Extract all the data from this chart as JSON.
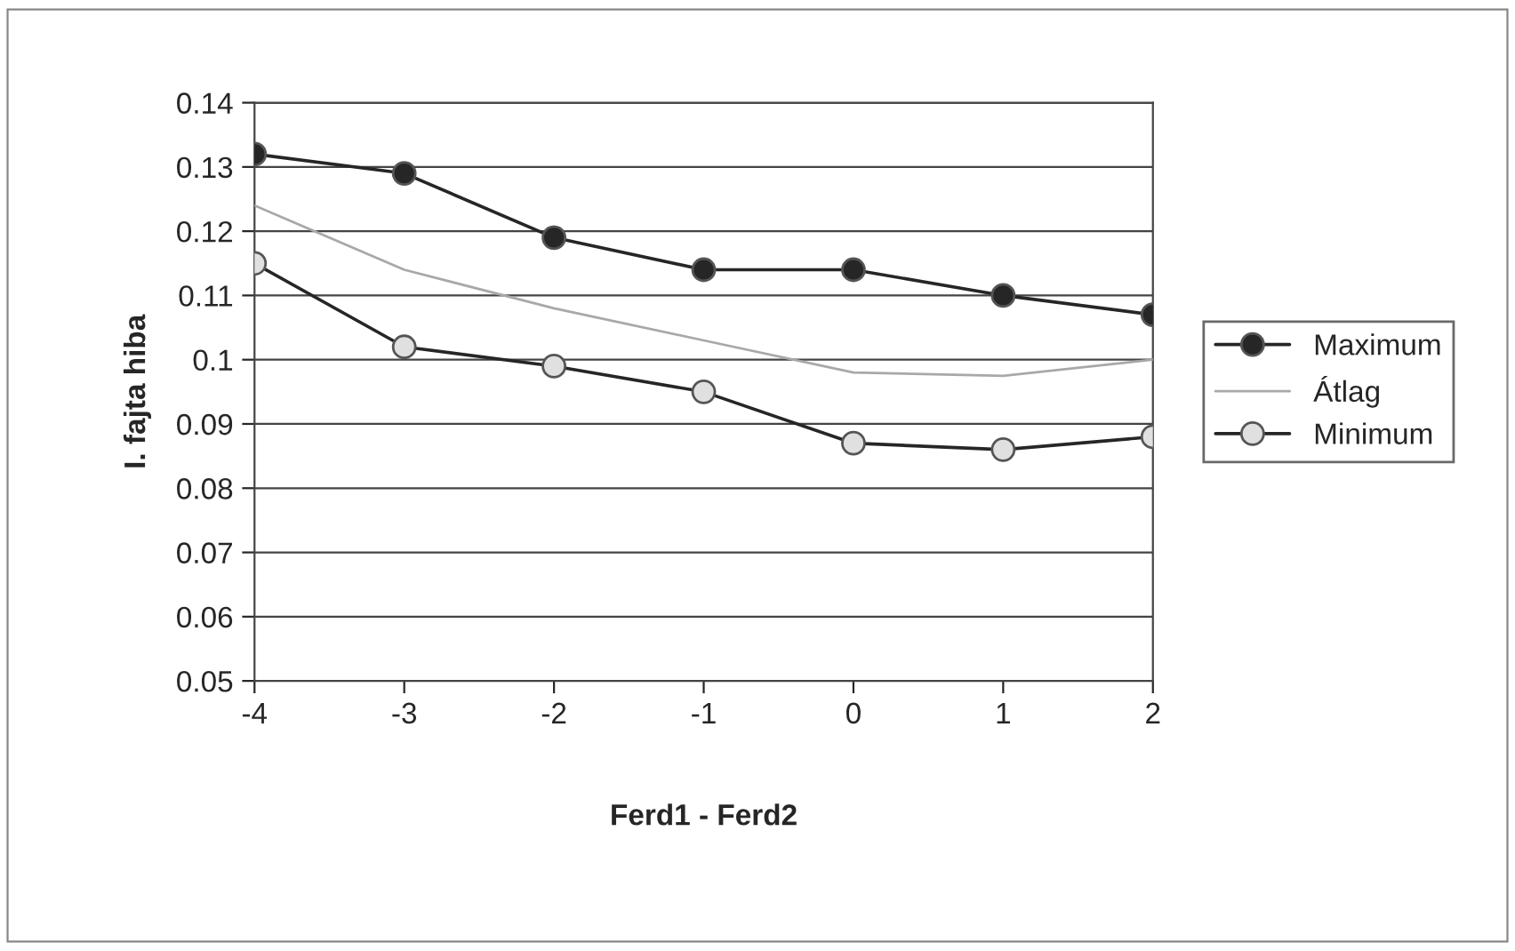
{
  "chart_data": {
    "type": "line",
    "xlabel": "Ferd1 - Ferd2",
    "ylabel": "I. fajta hiba",
    "categories": [
      "-4",
      "-3",
      "-2",
      "-1",
      "0",
      "1",
      "2"
    ],
    "series": [
      {
        "name": "Maximum",
        "color": "#262626",
        "marker": "circle",
        "values": [
          0.132,
          0.129,
          0.119,
          0.114,
          0.114,
          0.11,
          0.107
        ]
      },
      {
        "name": "Átlag",
        "color": "#a8a8a8",
        "marker": "none",
        "values": [
          0.124,
          0.114,
          0.108,
          0.103,
          0.098,
          0.0975,
          0.1
        ]
      },
      {
        "name": "Minimum",
        "color": "#262626",
        "marker": "circle",
        "values": [
          0.115,
          0.102,
          0.099,
          0.095,
          0.087,
          0.086,
          0.088
        ]
      }
    ],
    "ylim": [
      0.05,
      0.14
    ],
    "yticks": [
      0.05,
      0.06,
      0.07,
      0.08,
      0.09,
      0.1,
      0.11,
      0.12,
      0.13,
      0.14
    ],
    "grid": "y",
    "legend": "right"
  }
}
